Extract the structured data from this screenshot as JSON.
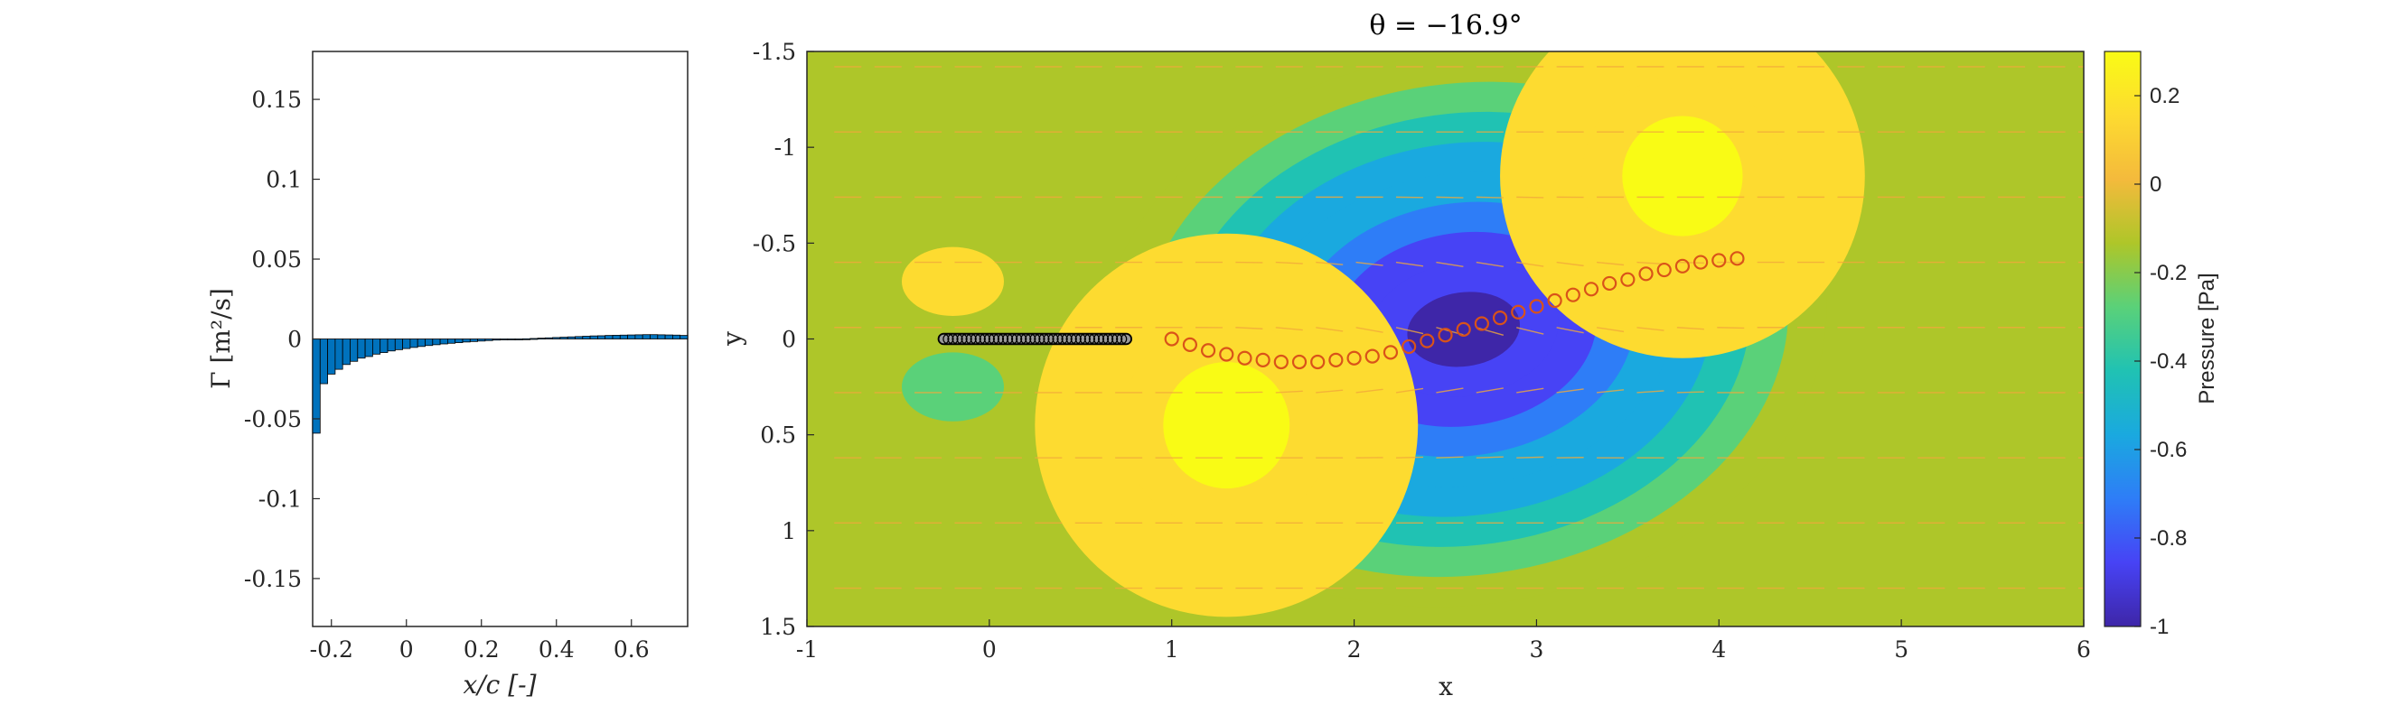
{
  "chart_data": [
    {
      "type": "bar",
      "xlabel": "x/c [-]",
      "ylabel": "Γ [m²/s]",
      "xlim": [
        -0.25,
        0.75
      ],
      "ylim": [
        -0.18,
        0.18
      ],
      "xticks": [
        "-0.2",
        "0",
        "0.2",
        "0.4",
        "0.6"
      ],
      "yticks": [
        "-0.15",
        "-0.1",
        "-0.05",
        "0",
        "0.05",
        "0.1",
        "0.15"
      ],
      "bar_color": "#0072BD",
      "x": [
        -0.24,
        -0.22,
        -0.2,
        -0.18,
        -0.16,
        -0.14,
        -0.12,
        -0.1,
        -0.08,
        -0.06,
        -0.04,
        -0.02,
        0.0,
        0.02,
        0.04,
        0.06,
        0.08,
        0.1,
        0.12,
        0.14,
        0.16,
        0.18,
        0.2,
        0.22,
        0.24,
        0.26,
        0.28,
        0.3,
        0.32,
        0.34,
        0.36,
        0.38,
        0.4,
        0.42,
        0.44,
        0.46,
        0.48,
        0.5,
        0.52,
        0.54,
        0.56,
        0.58,
        0.6,
        0.62,
        0.64,
        0.66,
        0.68,
        0.7,
        0.72,
        0.74
      ],
      "values": [
        -0.059,
        -0.028,
        -0.022,
        -0.019,
        -0.016,
        -0.014,
        -0.012,
        -0.011,
        -0.0095,
        -0.0085,
        -0.0075,
        -0.0067,
        -0.006,
        -0.0053,
        -0.0047,
        -0.0041,
        -0.0036,
        -0.0031,
        -0.0027,
        -0.0023,
        -0.0019,
        -0.0016,
        -0.0013,
        -0.001,
        -0.0007,
        -0.0005,
        -0.0003,
        -0.0001,
        0.0001,
        0.0003,
        0.0005,
        0.0007,
        0.0009,
        0.0011,
        0.0013,
        0.0015,
        0.0017,
        0.0019,
        0.002,
        0.0022,
        0.0023,
        0.0024,
        0.0025,
        0.0026,
        0.0027,
        0.0027,
        0.0026,
        0.0025,
        0.0024,
        0.0022
      ]
    },
    {
      "type": "heatmap",
      "title": "θ = −16.9°",
      "xlabel": "x",
      "ylabel": "y",
      "xlim": [
        -1,
        6
      ],
      "ylim": [
        -1.5,
        1.5
      ],
      "y_reversed": true,
      "xticks": [
        "-1",
        "0",
        "1",
        "2",
        "3",
        "4",
        "5",
        "6"
      ],
      "yticks": [
        "-1.5",
        "-1",
        "-0.5",
        "0",
        "0.5",
        "1",
        "1.5"
      ],
      "colorbar": {
        "label": "Pressure [Pa]",
        "range": [
          -1,
          0.3
        ],
        "ticks": [
          "0.2",
          "0",
          "-0.2",
          "-0.4",
          "-0.6",
          "-0.8",
          "-1"
        ],
        "colormap": [
          "#3E26A8",
          "#4743F5",
          "#2E7DF7",
          "#1AA9DF",
          "#20C2B3",
          "#5AD179",
          "#AEC629",
          "#F4BA3C",
          "#FDDB30",
          "#F9FB15"
        ]
      },
      "background_level": -0.1,
      "features": [
        {
          "kind": "blob",
          "level": -0.95,
          "center": [
            2.6,
            -0.05
          ]
        },
        {
          "kind": "blob",
          "level": 0.25,
          "center": [
            1.3,
            0.45
          ]
        },
        {
          "kind": "blob",
          "level": 0.25,
          "center": [
            3.8,
            -0.85
          ]
        },
        {
          "kind": "blob",
          "level": 0.15,
          "center": [
            -0.2,
            -0.3
          ]
        },
        {
          "kind": "blob",
          "level": -0.3,
          "center": [
            -0.2,
            0.25
          ]
        }
      ],
      "plate": {
        "x": [
          -0.25,
          0.75
        ],
        "y": 0,
        "marker_color": "#000000"
      },
      "wake_points": {
        "color": "#D95319",
        "x": [
          1.0,
          1.1,
          1.2,
          1.3,
          1.4,
          1.5,
          1.6,
          1.7,
          1.8,
          1.9,
          2.0,
          2.1,
          2.2,
          2.3,
          2.4,
          2.5,
          2.6,
          2.7,
          2.8,
          2.9,
          3.0,
          3.1,
          3.2,
          3.3,
          3.4,
          3.5,
          3.6,
          3.7,
          3.8,
          3.9,
          4.0,
          4.1
        ],
        "y": [
          0.0,
          0.03,
          0.06,
          0.08,
          0.1,
          0.11,
          0.12,
          0.12,
          0.12,
          0.11,
          0.1,
          0.09,
          0.07,
          0.04,
          0.01,
          -0.02,
          -0.05,
          -0.08,
          -0.11,
          -0.14,
          -0.17,
          -0.2,
          -0.23,
          -0.26,
          -0.29,
          -0.31,
          -0.34,
          -0.36,
          -0.38,
          -0.4,
          -0.41,
          -0.42
        ]
      },
      "quiver_color": "#F2A93B"
    }
  ]
}
